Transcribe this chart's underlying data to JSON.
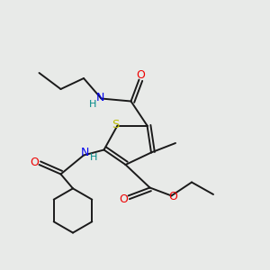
{
  "bg_color": "#e8eae8",
  "atom_colors": {
    "C": "#1a1a1a",
    "N": "#0000ee",
    "O": "#ee0000",
    "S": "#bbbb00",
    "H": "#008888"
  },
  "bond_color": "#1a1a1a",
  "lw": 1.4
}
